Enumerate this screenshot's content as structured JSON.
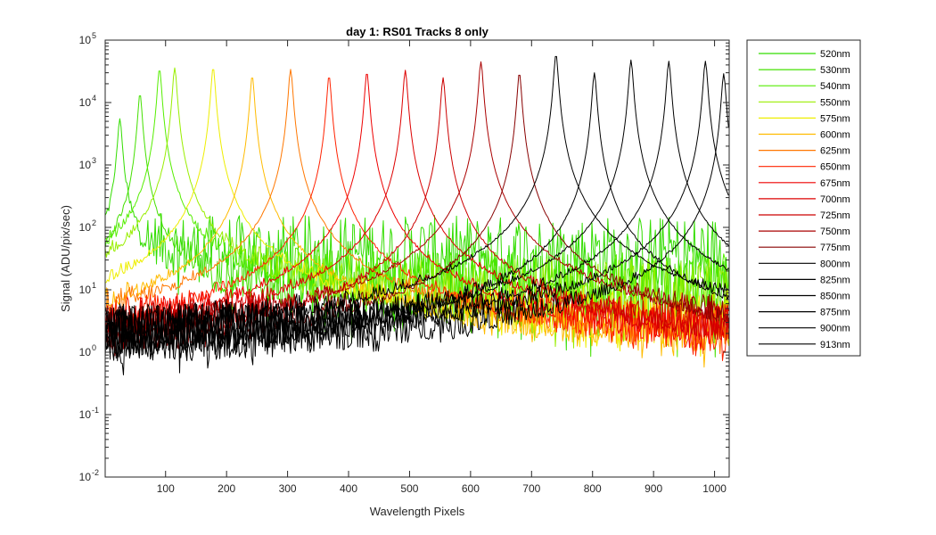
{
  "chart_data": {
    "type": "line",
    "title": "day 1: RS01   Tracks 8 only",
    "xlabel": "Wavelength Pixels",
    "ylabel": "Signal (ADU/pix/sec)",
    "xlim": [
      1,
      1024
    ],
    "ylim": [
      0.01,
      100000
    ],
    "yscale": "log",
    "x_ticks": [
      100,
      200,
      300,
      400,
      500,
      600,
      700,
      800,
      900,
      1000
    ],
    "y_ticks": [
      {
        "value": 0.01,
        "base": "10",
        "exp": "-2"
      },
      {
        "value": 0.1,
        "base": "10",
        "exp": "-1"
      },
      {
        "value": 1,
        "base": "10",
        "exp": "0"
      },
      {
        "value": 10,
        "base": "10",
        "exp": "1"
      },
      {
        "value": 100,
        "base": "10",
        "exp": "2"
      },
      {
        "value": 1000,
        "base": "10",
        "exp": "3"
      },
      {
        "value": 10000,
        "base": "10",
        "exp": "4"
      },
      {
        "value": 100000,
        "base": "10",
        "exp": "5"
      }
    ],
    "grid": false,
    "legend_position": "outside-right",
    "series": [
      {
        "name": "520nm",
        "color": "#33dd00",
        "peak_pixel": 25,
        "peak_value": 5500,
        "baseline": 45
      },
      {
        "name": "530nm",
        "color": "#44e000",
        "peak_pixel": 58,
        "peak_value": 14000,
        "baseline": 12
      },
      {
        "name": "540nm",
        "color": "#55ee00",
        "peak_pixel": 90,
        "peak_value": 35000,
        "baseline": 12
      },
      {
        "name": "550nm",
        "color": "#99ee00",
        "peak_pixel": 115,
        "peak_value": 36000,
        "baseline": 9
      },
      {
        "name": "575nm",
        "color": "#eeee00",
        "peak_pixel": 178,
        "peak_value": 37000,
        "baseline": 3
      },
      {
        "name": "600nm",
        "color": "#ffbb00",
        "peak_pixel": 242,
        "peak_value": 27000,
        "baseline": 2
      },
      {
        "name": "625nm",
        "color": "#ff7700",
        "peak_pixel": 305,
        "peak_value": 34000,
        "baseline": 2
      },
      {
        "name": "650nm",
        "color": "#ff2200",
        "peak_pixel": 368,
        "peak_value": 27000,
        "baseline": 1.5
      },
      {
        "name": "675nm",
        "color": "#ee0000",
        "peak_pixel": 430,
        "peak_value": 31000,
        "baseline": 1.5
      },
      {
        "name": "700nm",
        "color": "#dd0000",
        "peak_pixel": 493,
        "peak_value": 33000,
        "baseline": 1.5
      },
      {
        "name": "725nm",
        "color": "#cc0000",
        "peak_pixel": 555,
        "peak_value": 25000,
        "baseline": 1.5
      },
      {
        "name": "750nm",
        "color": "#aa0000",
        "peak_pixel": 617,
        "peak_value": 45000,
        "baseline": 1.5
      },
      {
        "name": "775nm",
        "color": "#880000",
        "peak_pixel": 680,
        "peak_value": 30000,
        "baseline": 1.5
      },
      {
        "name": "800nm",
        "color": "#000000",
        "peak_pixel": 740,
        "peak_value": 60000,
        "baseline": 1.5
      },
      {
        "name": "825nm",
        "color": "#000000",
        "peak_pixel": 803,
        "peak_value": 30000,
        "baseline": 1.5
      },
      {
        "name": "850nm",
        "color": "#000000",
        "peak_pixel": 863,
        "peak_value": 48000,
        "baseline": 1.5
      },
      {
        "name": "875nm",
        "color": "#000000",
        "peak_pixel": 925,
        "peak_value": 46000,
        "baseline": 1.5
      },
      {
        "name": "900nm",
        "color": "#000000",
        "peak_pixel": 985,
        "peak_value": 46000,
        "baseline": 1.5
      },
      {
        "name": "913nm",
        "color": "#000000",
        "peak_pixel": 1015,
        "peak_value": 29000,
        "baseline": 1.5
      }
    ]
  }
}
